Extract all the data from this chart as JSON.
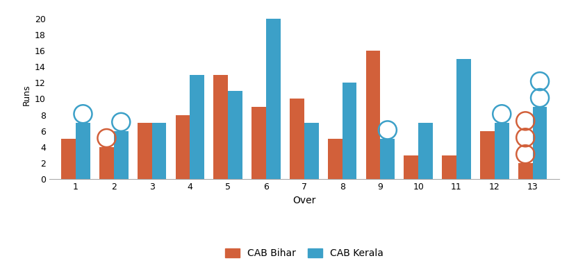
{
  "overs": [
    1,
    2,
    3,
    4,
    5,
    6,
    7,
    8,
    9,
    10,
    11,
    12,
    13
  ],
  "cab_bihar": [
    5,
    4,
    7,
    8,
    13,
    9,
    10,
    5,
    16,
    3,
    3,
    6,
    2
  ],
  "cab_kerala": [
    7,
    6,
    7,
    13,
    11,
    20,
    7,
    12,
    5,
    7,
    15,
    7,
    9
  ],
  "bihar_wickets": [
    0,
    1,
    0,
    0,
    0,
    0,
    0,
    0,
    0,
    0,
    0,
    0,
    3
  ],
  "kerala_wickets": [
    1,
    1,
    0,
    0,
    0,
    0,
    0,
    0,
    1,
    0,
    0,
    1,
    2
  ],
  "bihar_color": "#d2603a",
  "kerala_color": "#3ca0c8",
  "bg_color": "#ffffff",
  "xlabel": "Over",
  "ylabel": "Runs",
  "ylim": [
    0,
    21
  ],
  "yticks": [
    0,
    2,
    4,
    6,
    8,
    10,
    12,
    14,
    16,
    18,
    20
  ],
  "legend_bihar": "CAB Bihar",
  "legend_kerala": "CAB Kerala",
  "bar_width": 0.38
}
